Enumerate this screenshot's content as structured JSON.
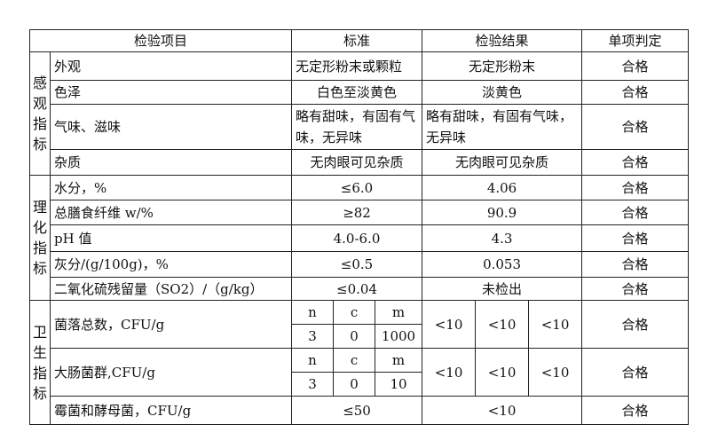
{
  "header": {
    "item": "检验项目",
    "standard": "标准",
    "result": "检验结果",
    "judgment": "单项判定"
  },
  "sensory": {
    "group": "感观指标",
    "rows": [
      {
        "item": "外观",
        "standard": "无定形粉末或颗粒",
        "result": "无定形粉末",
        "judgment": "合格"
      },
      {
        "item": "色泽",
        "standard": "白色至淡黄色",
        "result": "淡黄色",
        "judgment": "合格"
      },
      {
        "item": "气味、滋味",
        "standard": "略有甜味，有固有气味，无异味",
        "result": "略有甜味，有固有气味，无异味",
        "judgment": "合格"
      },
      {
        "item": "杂质",
        "standard": "无肉眼可见杂质",
        "result": "无肉眼可见杂质",
        "judgment": "合格"
      }
    ]
  },
  "physchem": {
    "group": "理化指标",
    "rows": [
      {
        "item": "水分，%",
        "standard": "≤6.0",
        "result": "4.06",
        "judgment": "合格"
      },
      {
        "item": "总膳食纤维 w/%",
        "standard": "≥82",
        "result": "90.9",
        "judgment": "合格"
      },
      {
        "item": "pH 值",
        "standard": "4.0-6.0",
        "result": "4.3",
        "judgment": "合格"
      },
      {
        "item": "灰分/(g/100g)，%",
        "standard": "≤0.5",
        "result": "0.053",
        "judgment": "合格"
      },
      {
        "item": "二氧化硫残留量（SO2）/（g/kg）",
        "standard": "≤0.04",
        "result": "未检出",
        "judgment": "合格"
      }
    ]
  },
  "hygiene": {
    "group": "卫生指标",
    "rows": [
      {
        "item": "菌落总数，CFU/g",
        "plan_labels": [
          "n",
          "c",
          "m"
        ],
        "plan_values": [
          "3",
          "0",
          "1000"
        ],
        "results": [
          "<10",
          "<10",
          "<10"
        ],
        "judgment": "合格"
      },
      {
        "item": "大肠菌群,CFU/g",
        "plan_labels": [
          "n",
          "c",
          "m"
        ],
        "plan_values": [
          "3",
          "0",
          "10"
        ],
        "results": [
          "<10",
          "<10",
          "<10"
        ],
        "judgment": "合格"
      },
      {
        "item": "霉菌和酵母菌，CFU/g",
        "standard": "≤50",
        "result": "<10",
        "judgment": "合格"
      }
    ]
  }
}
